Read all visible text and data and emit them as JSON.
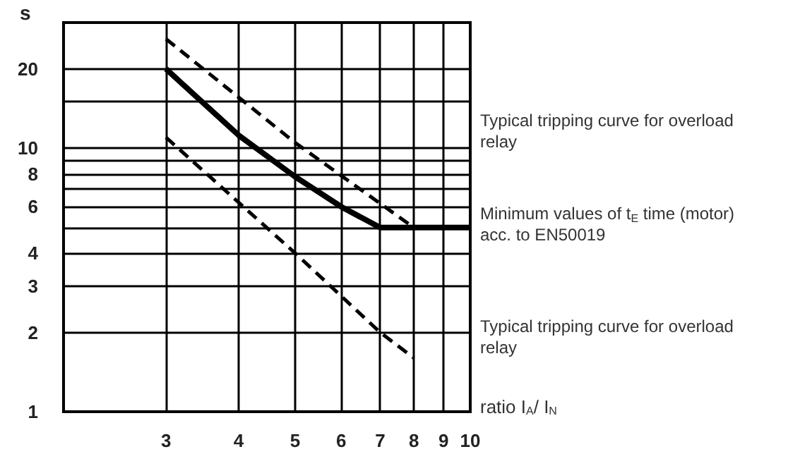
{
  "chart_data": {
    "type": "line",
    "ylabel": "s",
    "xlabel": "ratio I$_{A}$/ I$_{N}$",
    "log": "xy",
    "xlim": [
      2,
      10
    ],
    "xticks": [
      3,
      4,
      5,
      6,
      7,
      8,
      9,
      10
    ],
    "ylim": [
      1,
      30
    ],
    "yticks": [
      1,
      2,
      3,
      4,
      {
        "value": 5,
        "label": null
      },
      6,
      {
        "value": 7,
        "label": null
      },
      8,
      {
        "value": 9,
        "label": null
      },
      10,
      {
        "value": 15,
        "label": null
      },
      20
    ],
    "grid": true,
    "marker": "none",
    "series": [
      {
        "name": "Typical tripping curve for overload relay",
        "color": "#000000",
        "line_style": "dashed",
        "x": [
          3,
          5,
          8
        ],
        "values": [
          26,
          10.5,
          5
        ]
      },
      {
        "name": "Minimum values of t$_{E}$ time (motor) acc. to EN50019",
        "color": "#000000",
        "line_style": "solid",
        "x": [
          3,
          4,
          5,
          6,
          7,
          10
        ],
        "values": [
          20,
          11.2,
          7.8,
          6,
          5,
          5
        ]
      },
      {
        "name": "Typical tripping curve for overload relay",
        "color": "#000000",
        "line_style": "dashed",
        "x": [
          3,
          5,
          7,
          8
        ],
        "values": [
          11,
          4,
          2,
          1.6
        ]
      }
    ]
  }
}
